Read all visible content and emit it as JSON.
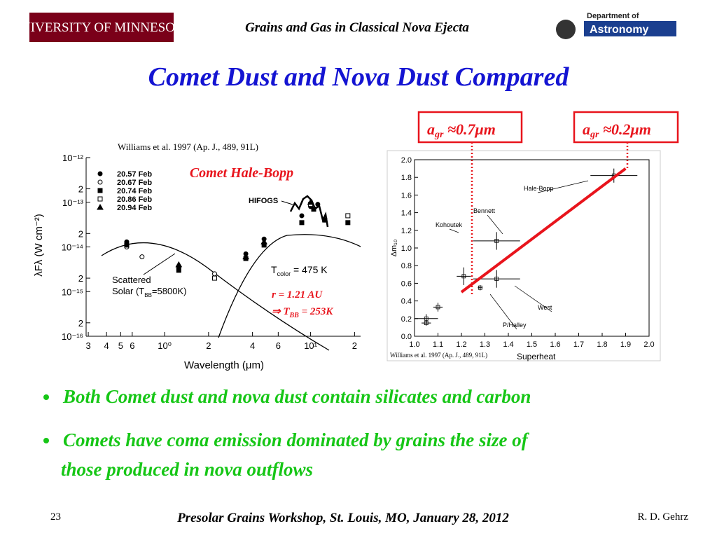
{
  "header": {
    "university": "UNIVERSITY OF MINNESOTA",
    "subtitle": "Grains and Gas in Classical Nova Ejecta",
    "dept_line1": "Department of",
    "dept_line2": "Astronomy"
  },
  "title": "Comet Dust and Nova Dust Compared",
  "size_boxes": [
    {
      "symbol": "a",
      "sub": "gr",
      "value": " ≈0.7μm"
    },
    {
      "symbol": "a",
      "sub": "gr",
      "value": " ≈0.2μm"
    }
  ],
  "chart_data": [
    {
      "type": "scatter",
      "log_x": true,
      "log_y": true,
      "source": "Williams et al. 1997 (Ap. J., 489, 91L)",
      "title": "Comet Hale-Bopp",
      "xlabel": "Wavelength (μm)",
      "ylabel": "λFλ (W cm⁻²)",
      "xlim": [
        0.29,
        22
      ],
      "ylim": [
        1e-16,
        1e-12
      ],
      "xticks": [
        {
          "value": 0.3,
          "label": "3"
        },
        {
          "value": 0.4,
          "label": "4"
        },
        {
          "value": 0.5,
          "label": "5"
        },
        {
          "value": 0.6,
          "label": "6"
        },
        {
          "value": 1,
          "label": "10⁰"
        },
        2,
        4,
        6,
        {
          "value": 10,
          "label": "10¹"
        },
        {
          "value": 20,
          "label": "2"
        }
      ],
      "yticks": [
        {
          "value": 1e-12,
          "label": "10⁻¹²"
        },
        {
          "value": 2e-13,
          "label": "2"
        },
        {
          "value": 1e-13,
          "label": "10⁻¹³"
        },
        {
          "value": 2e-14,
          "label": "2"
        },
        {
          "value": 1e-14,
          "label": "10⁻¹⁴"
        },
        {
          "value": 2e-15,
          "label": "2"
        },
        {
          "value": 1e-15,
          "label": "10⁻¹⁵"
        },
        {
          "value": 2e-16,
          "label": "2"
        },
        {
          "value": 1e-16,
          "label": "10⁻¹⁶"
        }
      ],
      "series": [
        {
          "name": "20.57 Feb",
          "marker": "filled-circle",
          "color": "#000",
          "x": [
            0.55,
            1.25,
            3.6,
            4.8,
            8.7,
            10.0,
            11.2,
            12.5
          ],
          "values": [
            1.3e-14,
            3.5e-15,
            7e-15,
            1.5e-14,
            5e-14,
            8e-14,
            9e-14,
            4e-14
          ]
        },
        {
          "name": "20.67 Feb",
          "marker": "open-circle",
          "color": "#000",
          "x": [
            0.55,
            0.7,
            2.2
          ],
          "values": [
            1e-14,
            6e-15,
            2.5e-15
          ]
        },
        {
          "name": "20.74 Feb",
          "marker": "filled-square",
          "color": "#000",
          "x": [
            0.55,
            1.25,
            3.6,
            4.8,
            8.7,
            10.5,
            12.5,
            18
          ],
          "values": [
            1.1e-14,
            3e-15,
            5.5e-15,
            1.1e-14,
            3.5e-14,
            7e-14,
            4e-14,
            3.5e-14
          ]
        },
        {
          "name": "20.86 Feb",
          "marker": "open-square",
          "color": "#000",
          "x": [
            2.2,
            10.0,
            18
          ],
          "values": [
            2e-15,
            9e-14,
            5e-14
          ]
        },
        {
          "name": "20.94 Feb",
          "marker": "filled-triangle",
          "color": "#000",
          "x": [
            1.25,
            3.6,
            4.8,
            10.0
          ],
          "values": [
            4e-15,
            6e-15,
            1.3e-14,
            1e-13
          ]
        }
      ],
      "annotations": {
        "hifogs": "HIFOGS",
        "tcolor": {
          "prefix": "T",
          "sub": "color",
          "rest": " = 475 K"
        },
        "scattered_1": "Scattered",
        "scattered_2": {
          "prefix": "Solar (T",
          "sub": "BB",
          "rest": "=5800K)"
        },
        "distance": "r = 1.21 AU",
        "tbb": {
          "prefix": "⇒ T",
          "sub": "BB",
          "rest": " = 253K"
        }
      }
    },
    {
      "type": "scatter",
      "xlabel": "Superheat",
      "ylabel": "Δm₁₀",
      "source": "Williams et al. 1997 (Ap. J., 489, 91L)",
      "xlim": [
        1.0,
        2.0
      ],
      "ylim": [
        0.0,
        2.0
      ],
      "xticks": [
        {
          "value": 1.0,
          "label": "1.0"
        },
        1.1,
        1.2,
        1.3,
        1.4,
        1.5,
        1.6,
        1.7,
        1.8,
        1.9,
        {
          "value": 2.0,
          "label": "2.0"
        }
      ],
      "yticks": [
        {
          "value": 0.0,
          "label": "0.0"
        },
        0.2,
        0.4,
        0.6,
        0.8,
        {
          "value": 1.0,
          "label": "1.0"
        },
        1.2,
        1.4,
        1.6,
        1.8,
        {
          "value": 2.0,
          "label": "2.0"
        }
      ],
      "point_labels": [
        null,
        null,
        null,
        "Kohoutek",
        "West",
        "P/Halley",
        "Bennett",
        "Hale-Bopp"
      ],
      "x": [
        1.05,
        1.05,
        1.1,
        1.21,
        1.35,
        1.28,
        1.35,
        1.85
      ],
      "values": [
        0.2,
        0.15,
        0.33,
        0.68,
        0.65,
        0.55,
        1.08,
        1.82
      ],
      "xerr": [
        0.05,
        0.02,
        0.02,
        0.03,
        0.1,
        0.01,
        0.1,
        0.1
      ],
      "yerr": [
        0.05,
        0.03,
        0.05,
        0.1,
        0.1,
        0.03,
        0.1,
        0.08
      ],
      "fit": {
        "color": "#e8141c",
        "x": [
          1.2,
          1.9
        ],
        "values": [
          0.5,
          1.9
        ]
      }
    }
  ],
  "bullets": [
    {
      "lines": [
        "Both Comet dust and nova dust contain silicates and carbon"
      ]
    },
    {
      "lines": [
        "Comets have coma emission dominated by grains the size of",
        "those produced in nova outflows"
      ]
    }
  ],
  "footer": {
    "page": "23",
    "event": "Presolar Grains Workshop, St. Louis, MO, January 28, 2012",
    "author": "R. D. Gehrz"
  }
}
